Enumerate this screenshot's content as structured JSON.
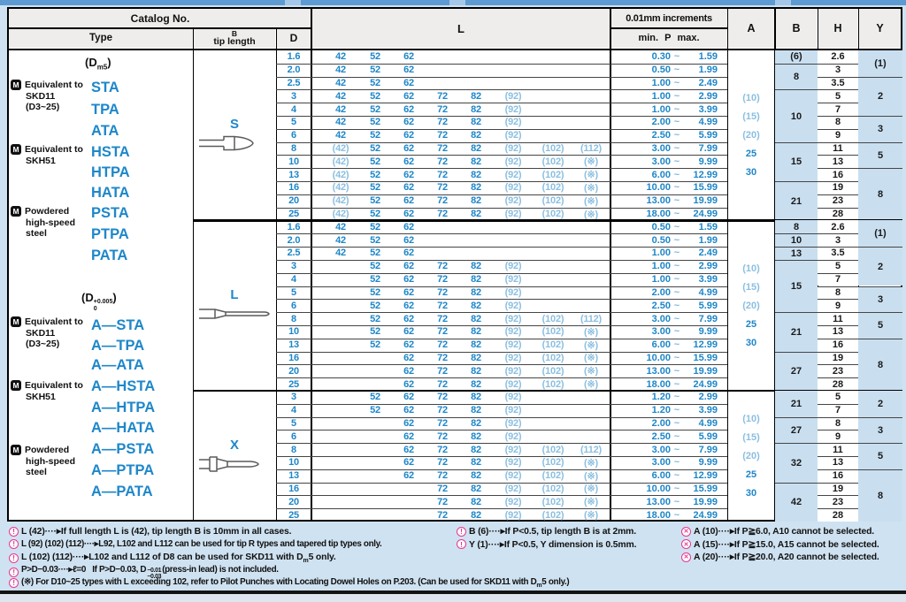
{
  "page": {
    "bg": "#cfe2f1",
    "accent_blue": "#1d86c8",
    "light_blue_text": "#8bbfe0",
    "cell_blue_bg": "#c9dff0",
    "header_bg": "#eeedeb",
    "note_pink": "#e8368f",
    "tilde_symbol": "~"
  },
  "header": {
    "catalog_no": "Catalog No.",
    "type": "Type",
    "tip_b": "B",
    "tip_length": "tip length",
    "d": "D",
    "l": "L",
    "increments": "0.01mm increments",
    "min": "min.",
    "p": "P",
    "max": "max.",
    "a": "A",
    "b": "B",
    "h": "H",
    "y": "Y"
  },
  "type_column": {
    "dm5_html": "(<b>D</b><sub>m5</sub>)",
    "dtol_html": "(<b>D</b><span class=\"tolst\"><span>+0.005</span><span>0</span></span>)",
    "groups": [
      {
        "label_lines": [
          "Equivalent to",
          "SKD11",
          "(D3~25)"
        ],
        "types": [
          "STA",
          "TPA",
          "ATA"
        ]
      },
      {
        "label_lines": [
          "Equivalent to",
          "SKH51"
        ],
        "types": [
          "HSTA",
          "HTPA",
          "HATA"
        ]
      },
      {
        "label_lines": [
          "Powdered",
          "high-speed",
          "steel"
        ],
        "types": [
          "PSTA",
          "PTPA",
          "PATA"
        ]
      },
      {
        "label_lines": [
          "Equivalent to",
          "SKD11",
          "(D3~25)"
        ],
        "types": [
          "A—STA",
          "A—TPA",
          "A—ATA"
        ]
      },
      {
        "label_lines": [
          "Equivalent to",
          "SKH51"
        ],
        "types": [
          "A—HSTA",
          "A—HTPA",
          "A—HATA"
        ]
      },
      {
        "label_lines": [
          "Powdered",
          "high-speed",
          "steel"
        ],
        "types": [
          "A—PSTA",
          "A—PTPA",
          "A—PATA"
        ]
      }
    ]
  },
  "sections": [
    {
      "tip_label": "S",
      "rows": [
        {
          "d": "1.6",
          "ls": 0,
          "l": [
            "42",
            "52",
            "62"
          ],
          "p": [
            "0.30",
            "1.59"
          ]
        },
        {
          "d": "2.0",
          "ls": 0,
          "l": [
            "42",
            "52",
            "62"
          ],
          "p": [
            "0.50",
            "1.99"
          ]
        },
        {
          "d": "2.5",
          "ls": 0,
          "l": [
            "42",
            "52",
            "62"
          ],
          "p": [
            "1.00",
            "2.49"
          ]
        },
        {
          "d": "3",
          "ls": 0,
          "l": [
            "42",
            "52",
            "62",
            "72",
            "82",
            "(92)"
          ],
          "p": [
            "1.00",
            "2.99"
          ]
        },
        {
          "d": "4",
          "ls": 0,
          "l": [
            "42",
            "52",
            "62",
            "72",
            "82",
            "(92)"
          ],
          "p": [
            "1.00",
            "3.99"
          ]
        },
        {
          "d": "5",
          "ls": 0,
          "l": [
            "42",
            "52",
            "62",
            "72",
            "82",
            "(92)"
          ],
          "p": [
            "2.00",
            "4.99"
          ]
        },
        {
          "d": "6",
          "ls": 0,
          "l": [
            "42",
            "52",
            "62",
            "72",
            "82",
            "(92)"
          ],
          "p": [
            "2.50",
            "5.99"
          ]
        },
        {
          "d": "8",
          "ls": 0,
          "l": [
            "(42)",
            "52",
            "62",
            "72",
            "82",
            "(92)",
            "(102)",
            "(112)"
          ],
          "p": [
            "3.00",
            "7.99"
          ]
        },
        {
          "d": "10",
          "ls": 0,
          "l": [
            "(42)",
            "52",
            "62",
            "72",
            "82",
            "(92)",
            "(102)",
            "(※)"
          ],
          "p": [
            "3.00",
            "9.99"
          ]
        },
        {
          "d": "13",
          "ls": 0,
          "l": [
            "(42)",
            "52",
            "62",
            "72",
            "82",
            "(92)",
            "(102)",
            "(※)"
          ],
          "p": [
            "6.00",
            "12.99"
          ]
        },
        {
          "d": "16",
          "ls": 0,
          "l": [
            "(42)",
            "52",
            "62",
            "72",
            "82",
            "(92)",
            "(102)",
            "(※)"
          ],
          "p": [
            "10.00",
            "15.99"
          ]
        },
        {
          "d": "20",
          "ls": 0,
          "l": [
            "(42)",
            "52",
            "62",
            "72",
            "82",
            "(92)",
            "(102)",
            "(※)"
          ],
          "p": [
            "13.00",
            "19.99"
          ]
        },
        {
          "d": "25",
          "ls": 0,
          "l": [
            "(42)",
            "52",
            "62",
            "72",
            "82",
            "(92)",
            "(102)",
            "(※)"
          ],
          "p": [
            "18.00",
            "24.99"
          ]
        }
      ],
      "a_values": [
        "(10)",
        "(15)",
        "(20)",
        "25",
        "30"
      ],
      "b_cells": [
        [
          "(6)",
          1
        ],
        [
          "8",
          2
        ],
        [
          "10",
          4
        ],
        [
          "15",
          3
        ],
        [
          "21",
          3
        ]
      ],
      "h_values": [
        "2.6",
        "3",
        "3.5",
        "5",
        "7",
        "8",
        "9",
        "11",
        "13",
        "16",
        "19",
        "23",
        "28"
      ],
      "y_cells": [
        [
          "(1)",
          2
        ],
        [
          "2",
          3
        ],
        [
          "3",
          2
        ],
        [
          "5",
          2
        ],
        [
          "8",
          4
        ]
      ]
    },
    {
      "tip_label": "L",
      "rows": [
        {
          "d": "1.6",
          "ls": 0,
          "l": [
            "42",
            "52",
            "62"
          ],
          "p": [
            "0.50",
            "1.59"
          ]
        },
        {
          "d": "2.0",
          "ls": 0,
          "l": [
            "42",
            "52",
            "62"
          ],
          "p": [
            "0.50",
            "1.99"
          ]
        },
        {
          "d": "2.5",
          "ls": 0,
          "l": [
            "42",
            "52",
            "62"
          ],
          "p": [
            "1.00",
            "2.49"
          ]
        },
        {
          "d": "3",
          "ls": 1,
          "l": [
            "52",
            "62",
            "72",
            "82",
            "(92)"
          ],
          "p": [
            "1.00",
            "2.99"
          ]
        },
        {
          "d": "4",
          "ls": 1,
          "l": [
            "52",
            "62",
            "72",
            "82",
            "(92)"
          ],
          "p": [
            "1.00",
            "3.99"
          ]
        },
        {
          "d": "5",
          "ls": 1,
          "l": [
            "52",
            "62",
            "72",
            "82",
            "(92)"
          ],
          "p": [
            "2.00",
            "4.99"
          ]
        },
        {
          "d": "6",
          "ls": 1,
          "l": [
            "52",
            "62",
            "72",
            "82",
            "(92)"
          ],
          "p": [
            "2.50",
            "5.99"
          ]
        },
        {
          "d": "8",
          "ls": 1,
          "l": [
            "52",
            "62",
            "72",
            "82",
            "(92)",
            "(102)",
            "(112)"
          ],
          "p": [
            "3.00",
            "7.99"
          ]
        },
        {
          "d": "10",
          "ls": 1,
          "l": [
            "52",
            "62",
            "72",
            "82",
            "(92)",
            "(102)",
            "(※)"
          ],
          "p": [
            "3.00",
            "9.99"
          ]
        },
        {
          "d": "13",
          "ls": 1,
          "l": [
            "52",
            "62",
            "72",
            "82",
            "(92)",
            "(102)",
            "(※)"
          ],
          "p": [
            "6.00",
            "12.99"
          ]
        },
        {
          "d": "16",
          "ls": 2,
          "l": [
            "62",
            "72",
            "82",
            "(92)",
            "(102)",
            "(※)"
          ],
          "p": [
            "10.00",
            "15.99"
          ]
        },
        {
          "d": "20",
          "ls": 2,
          "l": [
            "62",
            "72",
            "82",
            "(92)",
            "(102)",
            "(※)"
          ],
          "p": [
            "13.00",
            "19.99"
          ]
        },
        {
          "d": "25",
          "ls": 2,
          "l": [
            "62",
            "72",
            "82",
            "(92)",
            "(102)",
            "(※)"
          ],
          "p": [
            "18.00",
            "24.99"
          ]
        }
      ],
      "a_values": [
        "(10)",
        "(15)",
        "(20)",
        "25",
        "30"
      ],
      "b_cells": [
        [
          "8",
          1
        ],
        [
          "10",
          1
        ],
        [
          "13",
          1
        ],
        [
          "15",
          4
        ],
        [
          "21",
          3
        ],
        [
          "27",
          3
        ]
      ],
      "h_values": [
        "2.6",
        "3",
        "3.5",
        "5",
        "7",
        "8",
        "9",
        "11",
        "13",
        "16",
        "19",
        "23",
        "28"
      ],
      "y_cells": [
        [
          "(1)",
          2
        ],
        [
          "2",
          3
        ],
        [
          "3",
          2
        ],
        [
          "5",
          2
        ],
        [
          "8",
          4
        ]
      ]
    },
    {
      "tip_label": "X",
      "rows": [
        {
          "d": "3",
          "ls": 1,
          "l": [
            "52",
            "62",
            "72",
            "82",
            "(92)"
          ],
          "p": [
            "1.20",
            "2.99"
          ]
        },
        {
          "d": "4",
          "ls": 1,
          "l": [
            "52",
            "62",
            "72",
            "82",
            "(92)"
          ],
          "p": [
            "1.20",
            "3.99"
          ]
        },
        {
          "d": "5",
          "ls": 2,
          "l": [
            "62",
            "72",
            "82",
            "(92)"
          ],
          "p": [
            "2.00",
            "4.99"
          ]
        },
        {
          "d": "6",
          "ls": 2,
          "l": [
            "62",
            "72",
            "82",
            "(92)"
          ],
          "p": [
            "2.50",
            "5.99"
          ]
        },
        {
          "d": "8",
          "ls": 2,
          "l": [
            "62",
            "72",
            "82",
            "(92)",
            "(102)",
            "(112)"
          ],
          "p": [
            "3.00",
            "7.99"
          ]
        },
        {
          "d": "10",
          "ls": 2,
          "l": [
            "62",
            "72",
            "82",
            "(92)",
            "(102)",
            "(※)"
          ],
          "p": [
            "3.00",
            "9.99"
          ]
        },
        {
          "d": "13",
          "ls": 2,
          "l": [
            "62",
            "72",
            "82",
            "(92)",
            "(102)",
            "(※)"
          ],
          "p": [
            "6.00",
            "12.99"
          ]
        },
        {
          "d": "16",
          "ls": 3,
          "l": [
            "72",
            "82",
            "(92)",
            "(102)",
            "(※)"
          ],
          "p": [
            "10.00",
            "15.99"
          ]
        },
        {
          "d": "20",
          "ls": 3,
          "l": [
            "72",
            "82",
            "(92)",
            "(102)",
            "(※)"
          ],
          "p": [
            "13.00",
            "19.99"
          ]
        },
        {
          "d": "25",
          "ls": 3,
          "l": [
            "72",
            "82",
            "(92)",
            "(102)",
            "(※)"
          ],
          "p": [
            "18.00",
            "24.99"
          ]
        }
      ],
      "a_values": [
        "(10)",
        "(15)",
        "(20)",
        "25",
        "30"
      ],
      "b_cells": [
        [
          "21",
          2
        ],
        [
          "27",
          2
        ],
        [
          "32",
          3
        ],
        [
          "42",
          3
        ]
      ],
      "h_values": [
        "5",
        "7",
        "8",
        "9",
        "11",
        "13",
        "16",
        "19",
        "23",
        "28"
      ],
      "y_cells": [
        [
          "2",
          2
        ],
        [
          "3",
          2
        ],
        [
          "5",
          2
        ],
        [
          "8",
          4
        ]
      ]
    }
  ],
  "notes": {
    "left": [
      {
        "icon": "caution",
        "html": "L (42)····▸If full length L is (42), tip length B is 10mm in all cases."
      },
      {
        "icon": "caution",
        "html": "L (92) (102) (112)····▸L92, L102 and L112 can be used for tip R types and tapered tip types only."
      },
      {
        "icon": "caution",
        "html": "L (102) (112)····▸L102 and L112 of D8 can be used for SKD11 with D<sub>m</sub>5 only."
      },
      {
        "icon": "caution",
        "html": "P&gt;D−0.03····▸ℓ=0&nbsp;&nbsp;&nbsp;If P&gt;D−0.03, D<span class=\"tol2\"><span>−0.01</span><span>−0.03</span></span>(press-in lead) is not included."
      },
      {
        "icon": "caution",
        "html": "(※) For D10~25 types with L exceeding 102, refer to Pilot Punches with Locating Dowel Holes on P.203. (Can be used for SKD11 with D<sub>m</sub>5 only.)"
      }
    ],
    "middle": [
      {
        "icon": "caution",
        "html": "B (6)····▸If P&lt;0.5, tip length B is at 2mm."
      },
      {
        "icon": "caution",
        "html": "Y (1)····▸If P&lt;0.5, Y dimension is 0.5mm."
      }
    ],
    "right": [
      {
        "icon": "cannot",
        "html": "A (10)····▸If P≧6.0, A10 cannot be selected."
      },
      {
        "icon": "cannot",
        "html": "A (15)····▸If P≧15.0, A15 cannot be selected."
      },
      {
        "icon": "cannot",
        "html": "A (20)····▸If P≧20.0, A20 cannot be selected."
      }
    ]
  }
}
